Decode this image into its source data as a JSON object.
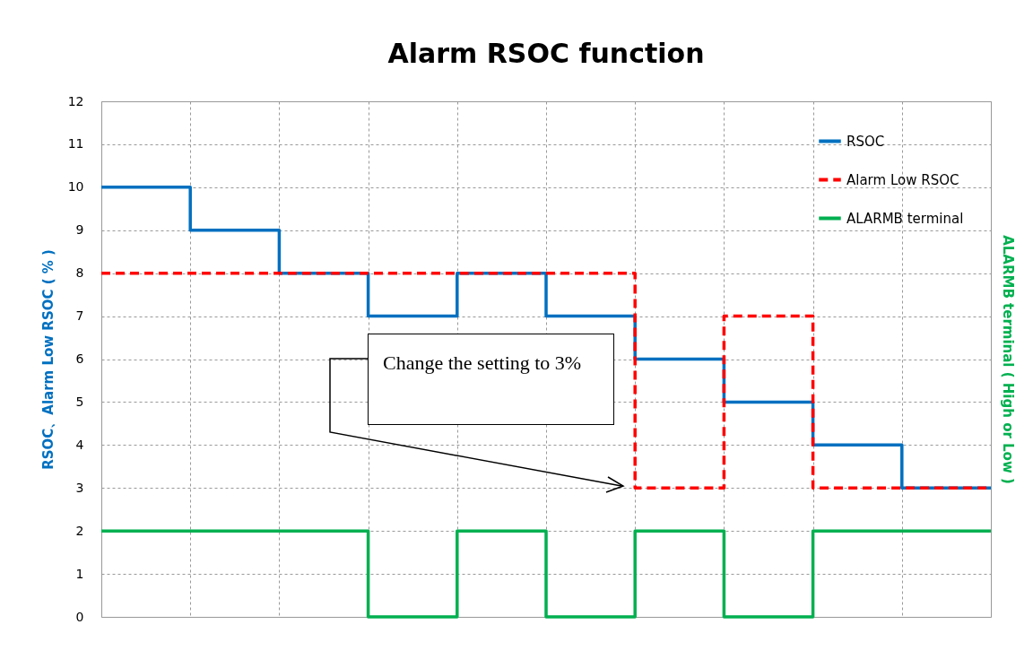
{
  "chart_data": {
    "type": "step",
    "title": "Alarm RSOC function",
    "ylabel": "RSOC、Alarm Low RSOC ( % )",
    "y2label": "ALARMB terminal ( High or Low )",
    "categories": [
      null,
      null,
      null,
      null,
      null,
      null,
      null,
      null,
      null,
      null,
      null
    ],
    "series": [
      {
        "name": "RSOC",
        "color": "#0070c0",
        "line_style": "solid",
        "values": [
          10,
          9,
          8,
          7,
          8,
          7,
          6,
          5,
          4,
          3,
          3
        ]
      },
      {
        "name": "Alarm Low RSOC",
        "color": "#ff0000",
        "line_style": "dashed",
        "values": [
          8,
          8,
          8,
          8,
          8,
          8,
          3,
          7,
          3,
          3,
          3
        ]
      },
      {
        "name": "ALARMB terminal",
        "color": "#00b050",
        "line_style": "solid",
        "values": [
          2,
          2,
          2,
          0,
          2,
          0,
          2,
          0,
          2,
          2,
          2
        ]
      }
    ],
    "ylim": [
      0,
      12
    ],
    "yticks": [
      0,
      1,
      2,
      3,
      4,
      5,
      6,
      7,
      8,
      9,
      10,
      11,
      12
    ],
    "grid": true,
    "legend": "top right",
    "tick_labels": "y",
    "annotations": [
      "Change the setting to 3%"
    ]
  }
}
